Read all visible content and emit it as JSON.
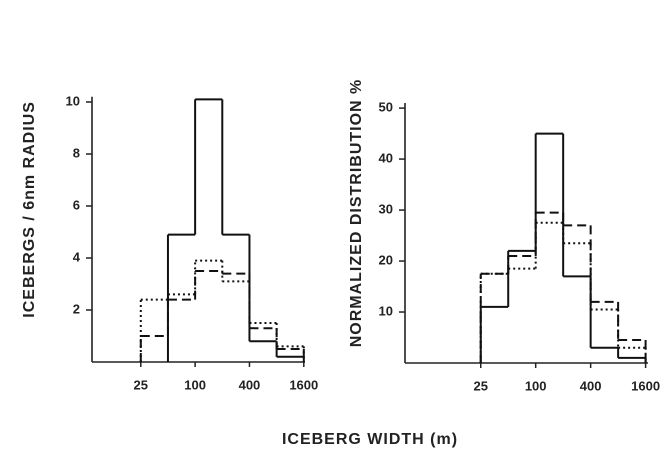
{
  "chart_data": [
    {
      "type": "histogram",
      "ylabel": "ICEBERGS / 6nm RADIUS",
      "log_x": true,
      "bins": [
        25,
        50,
        100,
        200,
        400,
        800,
        1600
      ],
      "series": [
        {
          "color": "#111111",
          "dash": "solid",
          "values": [
            null,
            4.9,
            10.1,
            4.9,
            0.8,
            0.2
          ]
        },
        {
          "color": "#111111",
          "dash": "dashed",
          "values": [
            1.0,
            2.4,
            3.5,
            3.4,
            1.3,
            0.5
          ]
        },
        {
          "color": "#111111",
          "dash": "dotted",
          "values": [
            2.4,
            2.6,
            3.9,
            3.1,
            1.5,
            0.6
          ]
        }
      ],
      "xlim": [
        7.2,
        1650
      ],
      "xticks": [
        25,
        100,
        400,
        1600
      ],
      "ylim": [
        0,
        10.2
      ],
      "yticks": [
        2,
        4,
        6,
        8,
        10
      ]
    },
    {
      "type": "histogram",
      "ylabel": "NORMALIZED DISTRIBUTION %",
      "log_x": true,
      "bins": [
        25,
        50,
        100,
        200,
        400,
        800,
        1600
      ],
      "series": [
        {
          "color": "#111111",
          "dash": "solid",
          "values": [
            11,
            22,
            45,
            17,
            3,
            1
          ]
        },
        {
          "color": "#111111",
          "dash": "dashed",
          "values": [
            17.5,
            21,
            29.5,
            27,
            12,
            4.5
          ]
        },
        {
          "color": "#111111",
          "dash": "dotted",
          "values": [
            17.5,
            18.5,
            27.5,
            23.5,
            10.5,
            3
          ]
        }
      ],
      "xlim": [
        3.7,
        1700
      ],
      "xticks": [
        25,
        100,
        400,
        1600
      ],
      "ylim": [
        0,
        51
      ],
      "yticks": [
        10,
        20,
        30,
        40,
        50
      ]
    }
  ],
  "xlabel": "ICEBERG WIDTH (m)"
}
